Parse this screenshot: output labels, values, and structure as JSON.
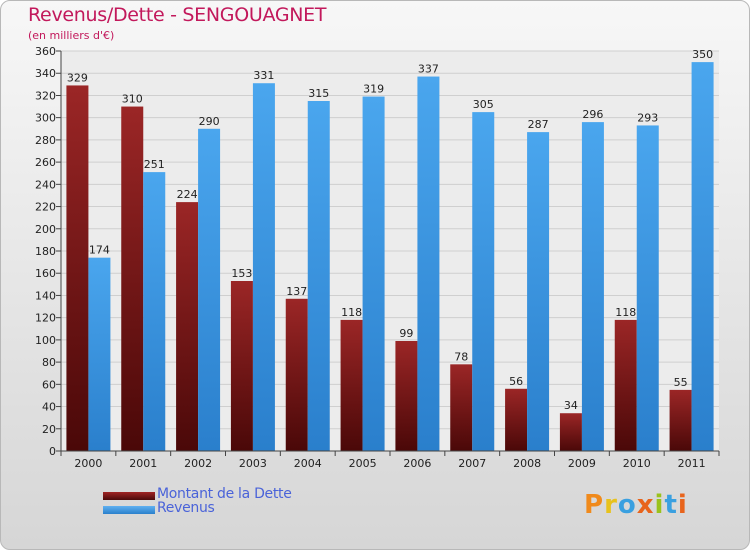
{
  "chart_data": {
    "type": "bar",
    "title": "Revenus/Dette - SENGOUAGNET",
    "subtitle": "(en milliers d'€)",
    "categories": [
      "2000",
      "2001",
      "2002",
      "2003",
      "2004",
      "2005",
      "2006",
      "2007",
      "2008",
      "2009",
      "2010",
      "2011"
    ],
    "series": [
      {
        "name": "Montant de la Dette",
        "color": "#8b1a1a",
        "values": [
          329,
          310,
          224,
          153,
          137,
          118,
          99,
          78,
          56,
          34,
          118,
          55
        ]
      },
      {
        "name": "Revenus",
        "color": "#3a96e0",
        "values": [
          174,
          251,
          290,
          331,
          315,
          319,
          337,
          305,
          287,
          296,
          293,
          350
        ]
      }
    ],
    "ylim": [
      0,
      360
    ],
    "ytick_step": 20,
    "grid": true,
    "legend_position": "bottom-left"
  },
  "logo_text": "Proxiti"
}
